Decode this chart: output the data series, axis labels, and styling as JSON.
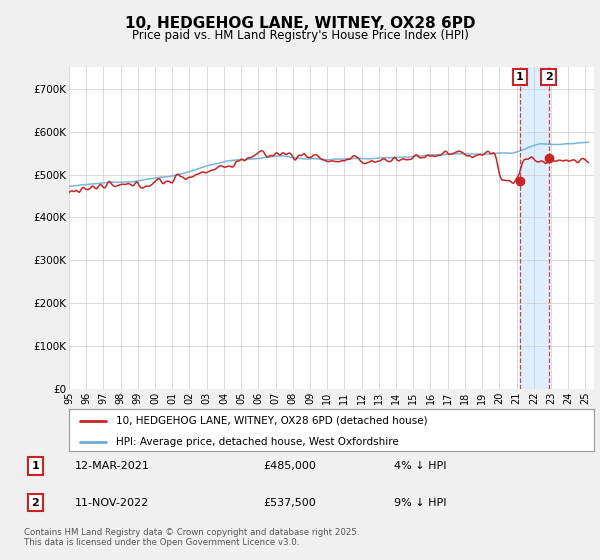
{
  "title": "10, HEDGEHOG LANE, WITNEY, OX28 6PD",
  "subtitle": "Price paid vs. HM Land Registry's House Price Index (HPI)",
  "ylim": [
    0,
    750000
  ],
  "yticks": [
    0,
    100000,
    200000,
    300000,
    400000,
    500000,
    600000,
    700000
  ],
  "ytick_labels": [
    "£0",
    "£100K",
    "£200K",
    "£300K",
    "£400K",
    "£500K",
    "£600K",
    "£700K"
  ],
  "hpi_color": "#6baed6",
  "price_color": "#cc2222",
  "background_color": "#f0f0f0",
  "plot_bg_color": "#ffffff",
  "shade_color": "#ddeeff",
  "legend_label_price": "10, HEDGEHOG LANE, WITNEY, OX28 6PD (detached house)",
  "legend_label_hpi": "HPI: Average price, detached house, West Oxfordshire",
  "annotation1_label": "1",
  "annotation1_date": "12-MAR-2021",
  "annotation1_price": "£485,000",
  "annotation1_info": "4% ↓ HPI",
  "annotation2_label": "2",
  "annotation2_date": "11-NOV-2022",
  "annotation2_price": "£537,500",
  "annotation2_info": "9% ↓ HPI",
  "footer": "Contains HM Land Registry data © Crown copyright and database right 2025.\nThis data is licensed under the Open Government Licence v3.0.",
  "sale1_x": 2021.19,
  "sale1_y": 485000,
  "sale2_x": 2022.86,
  "sale2_y": 537500,
  "xlim_left": 1995.0,
  "xlim_right": 2025.5
}
